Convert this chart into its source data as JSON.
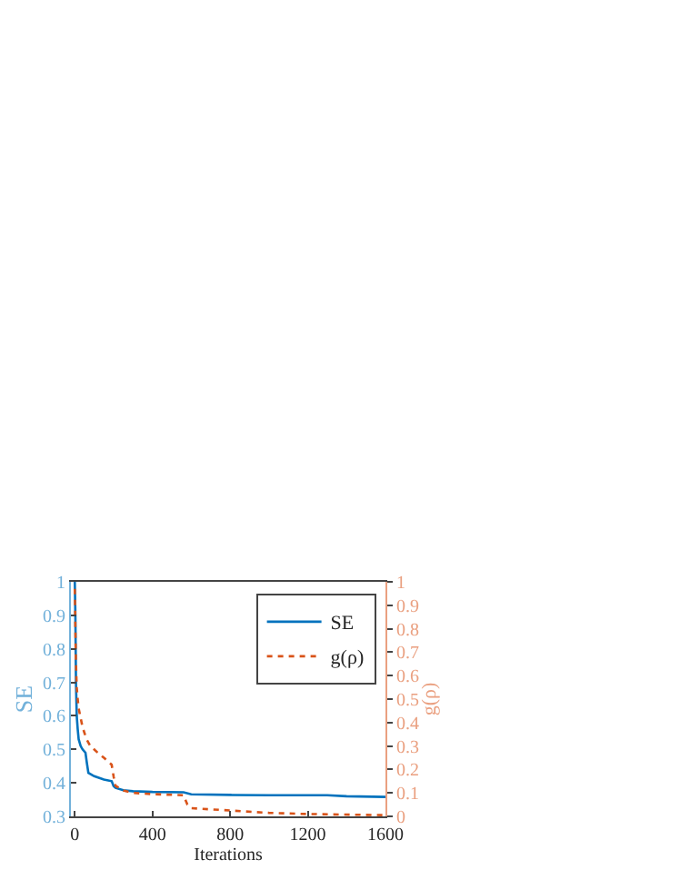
{
  "chart_data": {
    "type": "line",
    "xlabel": "Iterations",
    "ylabel": "SE",
    "y2label": "g(ρ)",
    "xlim": [
      -20,
      1600
    ],
    "xticks": [
      0,
      400,
      800,
      1200,
      1600
    ],
    "ylim": [
      0.3,
      1
    ],
    "yticks": [
      0.3,
      0.4,
      0.5,
      0.6,
      0.7,
      0.8,
      0.9,
      1
    ],
    "y2lim": [
      0,
      1
    ],
    "y2ticks": [
      0,
      0.1,
      0.2,
      0.3,
      0.4,
      0.5,
      0.6,
      0.7,
      0.8,
      0.9,
      1
    ],
    "legend": "top right",
    "series": [
      {
        "name": "SE",
        "color": "#0072bd",
        "line_style": "solid",
        "x": [
          0,
          3,
          6,
          10,
          15,
          20,
          30,
          40,
          55,
          62,
          70,
          100,
          150,
          190,
          200,
          210,
          250,
          300,
          400,
          560,
          600,
          800,
          1000,
          1300,
          1400,
          1600
        ],
        "values": [
          1,
          0.9,
          0.7,
          0.6,
          0.56,
          0.53,
          0.51,
          0.5,
          0.49,
          0.46,
          0.43,
          0.42,
          0.41,
          0.405,
          0.39,
          0.385,
          0.378,
          0.375,
          0.373,
          0.372,
          0.366,
          0.364,
          0.363,
          0.363,
          0.36,
          0.358
        ]
      },
      {
        "name": "g(ρ)",
        "color": "#d95319",
        "line_style": "dotted",
        "axis": "y2",
        "x": [
          0,
          3,
          6,
          10,
          15,
          20,
          30,
          40,
          60,
          80,
          120,
          150,
          190,
          200,
          210,
          250,
          300,
          400,
          560,
          580,
          600,
          700,
          800,
          1000,
          1200,
          1600
        ],
        "values": [
          0.97,
          0.8,
          0.65,
          0.55,
          0.5,
          0.46,
          0.42,
          0.38,
          0.33,
          0.3,
          0.27,
          0.25,
          0.22,
          0.17,
          0.13,
          0.11,
          0.1,
          0.095,
          0.09,
          0.05,
          0.035,
          0.03,
          0.025,
          0.015,
          0.01,
          0.005
        ]
      }
    ]
  }
}
